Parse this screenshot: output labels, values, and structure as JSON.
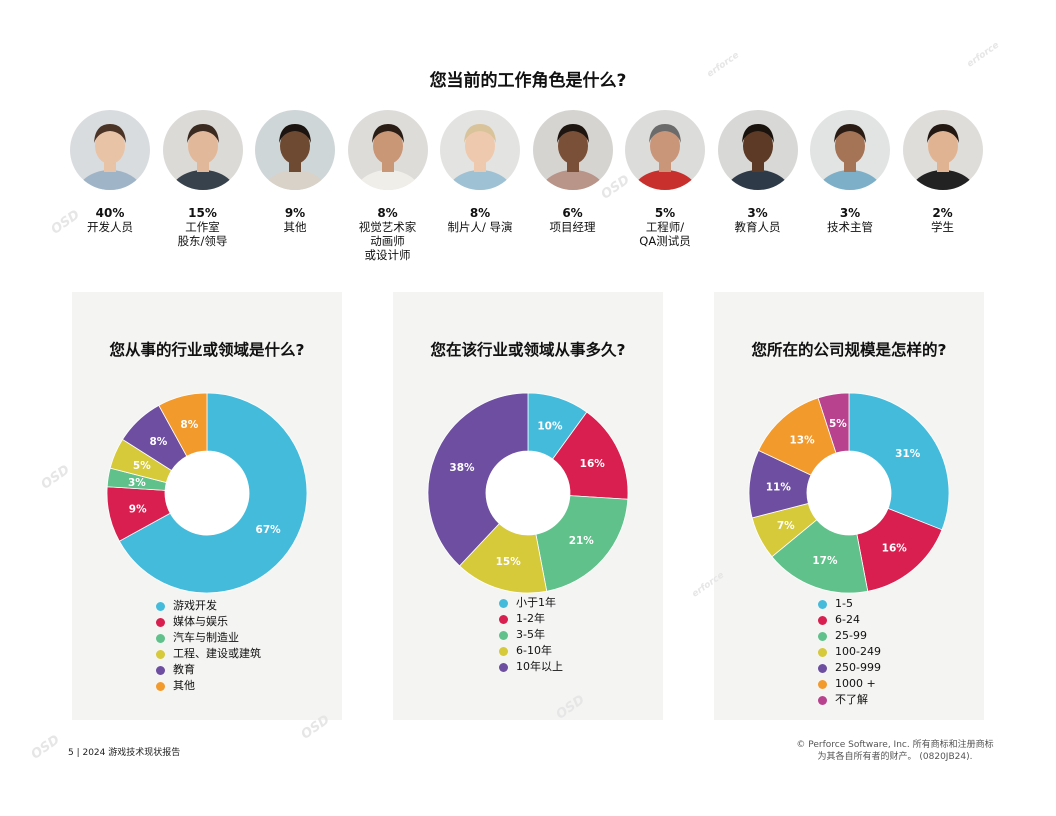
{
  "heading": "您当前的工作角色是什么?",
  "roles": [
    {
      "pct": "40%",
      "label": "开发人员",
      "skin": "#e8c3a6",
      "hair": "#4b3426",
      "shirt": "#9fb5c7",
      "bg": "#d9dcdf"
    },
    {
      "pct": "15%",
      "label": "工作室\n股东/领导",
      "skin": "#e2b89a",
      "hair": "#3b2a20",
      "shirt": "#38424d",
      "bg": "#dcdad6"
    },
    {
      "pct": "9%",
      "label": "其他",
      "skin": "#6e4a32",
      "hair": "#1c1410",
      "shirt": "#d8d2c8",
      "bg": "#cfd6d8"
    },
    {
      "pct": "8%",
      "label": "视觉艺术家\n动画师\n或设计师",
      "skin": "#c99676",
      "hair": "#2a1d16",
      "shirt": "#f0eee9",
      "bg": "#dedcd9"
    },
    {
      "pct": "8%",
      "label": "制片人/ 导演",
      "skin": "#efc9ae",
      "hair": "#d9c39a",
      "shirt": "#9ec1d4",
      "bg": "#e3e3e1"
    },
    {
      "pct": "6%",
      "label": "项目经理",
      "skin": "#7a5038",
      "hair": "#1e1510",
      "shirt": "#b89489",
      "bg": "#d6d4d0"
    },
    {
      "pct": "5%",
      "label": "工程师/\nQA测试员",
      "skin": "#c9967a",
      "hair": "#6b6b6b",
      "shirt": "#c8302e",
      "bg": "#dcdcda"
    },
    {
      "pct": "3%",
      "label": "教育人员",
      "skin": "#5c3a26",
      "hair": "#1a120d",
      "shirt": "#2f3a48",
      "bg": "#d8d8d6"
    },
    {
      "pct": "3%",
      "label": "技术主管",
      "skin": "#a57356",
      "hair": "#2a1c14",
      "shirt": "#7db0c8",
      "bg": "#e2e4e3"
    },
    {
      "pct": "2%",
      "label": "学生",
      "skin": "#e0b493",
      "hair": "#231812",
      "shirt": "#222222",
      "bg": "#dfddd9"
    }
  ],
  "chart_data": [
    {
      "type": "pie",
      "variant": "donut",
      "title": "您从事的行业或领域是什么?",
      "categories": [
        "游戏开发",
        "媒体与娱乐",
        "汽车与制造业",
        "工程、建设或建筑",
        "教育",
        "其他"
      ],
      "values": [
        67,
        9,
        3,
        5,
        8,
        8
      ],
      "value_labels": [
        "67%",
        "9%",
        "3%",
        "5%",
        "8%",
        "8%"
      ],
      "colors": [
        "#45bbdc",
        "#d81f4f",
        "#60c18a",
        "#d6c93a",
        "#6d4ea1",
        "#f39a2c"
      ],
      "legend": "bottom"
    },
    {
      "type": "pie",
      "variant": "donut",
      "title": "您在该行业或领域从事多久?",
      "categories": [
        "小于1年",
        "1-2年",
        "3-5年",
        "6-10年",
        "10年以上"
      ],
      "values": [
        10,
        16,
        21,
        15,
        38
      ],
      "value_labels": [
        "10%",
        "16%",
        "21%",
        "15%",
        "38%"
      ],
      "colors": [
        "#45bbdc",
        "#d81f4f",
        "#60c18a",
        "#d6c93a",
        "#6d4ea1"
      ],
      "legend": "bottom"
    },
    {
      "type": "pie",
      "variant": "donut",
      "title": "您所在的公司规模是怎样的?",
      "categories": [
        "1-5",
        "6-24",
        "25-99",
        "100-249",
        "250-999",
        "1000 +",
        "不了解"
      ],
      "values": [
        31,
        16,
        17,
        7,
        11,
        13,
        5
      ],
      "value_labels": [
        "31%",
        "16%",
        "17%",
        "7%",
        "11%",
        "13%",
        "5%"
      ],
      "colors": [
        "#45bbdc",
        "#d81f4f",
        "#60c18a",
        "#d6c93a",
        "#6d4ea1",
        "#f39a2c",
        "#b9428f"
      ],
      "legend": "bottom"
    }
  ],
  "footer": {
    "page": "5 | 2024 游戏技术现状报告",
    "copyright": "© Perforce Software, Inc. 所有商标和注册商标\n为其各自所有者的财产。 (0820JB24)."
  }
}
